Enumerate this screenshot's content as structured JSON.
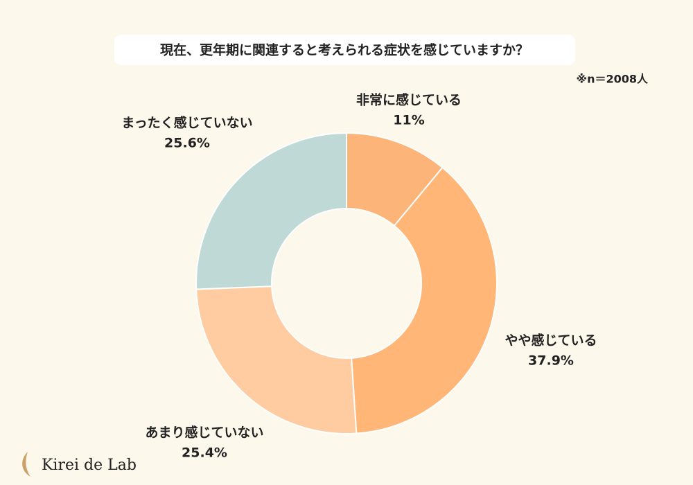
{
  "chart_data": {
    "type": "donut",
    "title": "現在、更年期に関連すると考えられる症状を感じていますか？",
    "note": "※n＝2008人",
    "categories": [
      "非常に感じている",
      "やや感じている",
      "あまり感じていない",
      "まったく感じていない"
    ],
    "values": [
      11,
      37.9,
      25.4,
      25.6
    ],
    "value_labels": [
      "11%",
      "37.9%",
      "25.4%",
      "25.6%"
    ],
    "colors": [
      "#fdb478",
      "#ffb676",
      "#ffcba0",
      "#bfdad6"
    ]
  },
  "logo": "Kirei de Lab"
}
